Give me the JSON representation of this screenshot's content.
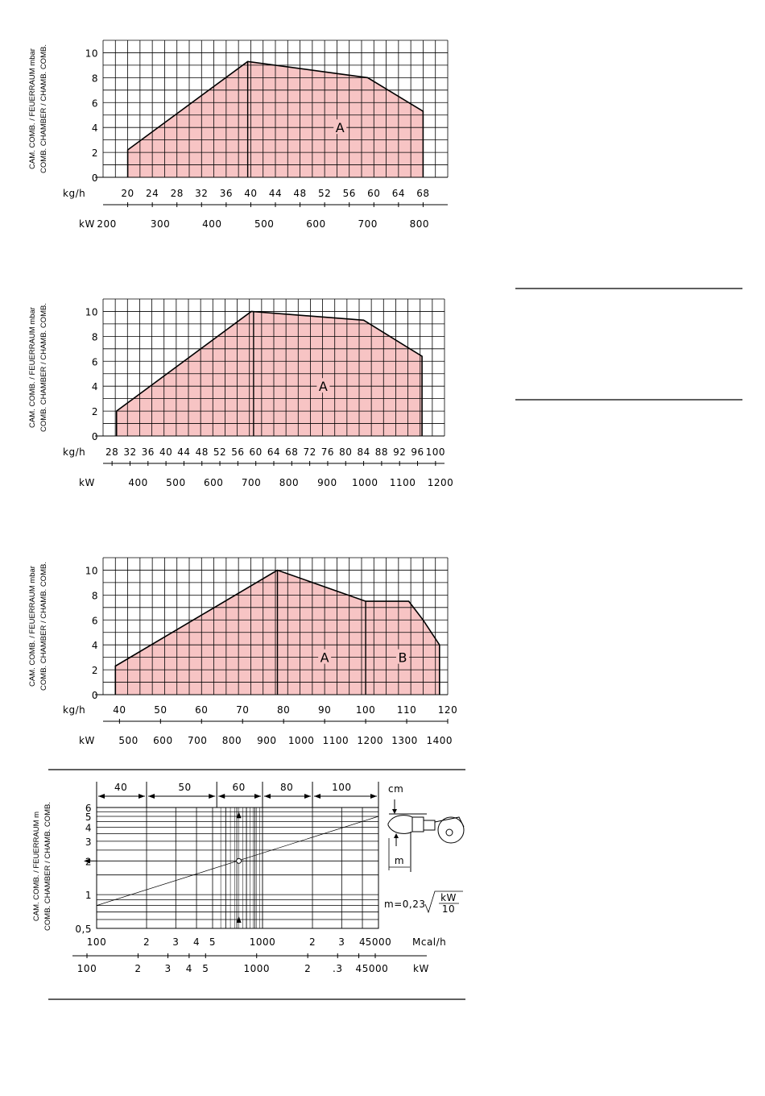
{
  "ylabel_lines": [
    "CAM. COMB. / FEUERRAUM mbar",
    "COMB. CHAMBER / CHAMB. COMB."
  ],
  "ylabel_lines_m": [
    "CAM. COMB. / FEUERRAUM m",
    "COMB. CHAMBER / CHAMB. COMB."
  ],
  "colors": {
    "fill": "#f7c4c4",
    "line": "#000000",
    "grid": "#000000"
  },
  "chart_data": [
    {
      "type": "area",
      "ylabel": "CAM. COMB. / FEUERRAUM mbar / COMB. CHAMBER / CHAMB. COMB.",
      "x_unit": "kg/h",
      "x2_unit": "kW",
      "xlim": [
        16,
        72
      ],
      "ylim": [
        0,
        11
      ],
      "grid": true,
      "x_ticks": [
        "20",
        "24",
        "28",
        "32",
        "36",
        "40",
        "44",
        "48",
        "52",
        "56",
        "60",
        "64",
        "68"
      ],
      "y_ticks": [
        "0",
        "2",
        "4",
        "6",
        "8",
        "10"
      ],
      "kw_ticks": [
        {
          "label": "200",
          "x": 16.6
        },
        {
          "label": "300",
          "x": 25.3
        },
        {
          "label": "400",
          "x": 33.7
        },
        {
          "label": "500",
          "x": 42.2
        },
        {
          "label": "600",
          "x": 50.6
        },
        {
          "label": "700",
          "x": 59.0
        },
        {
          "label": "800",
          "x": 67.4
        }
      ],
      "x": [
        20,
        20,
        39.5,
        59,
        68,
        68
      ],
      "y": [
        0,
        2.2,
        9.3,
        8.0,
        5.3,
        0
      ],
      "dividers": [
        39.5
      ],
      "regions": [
        {
          "label": "A",
          "x": 54.5,
          "y": 4
        }
      ]
    },
    {
      "type": "area",
      "ylabel": "CAM. COMB. / FEUERRAUM mbar / COMB. CHAMBER / CHAMB. COMB.",
      "x_unit": "kg/h",
      "x2_unit": "kW",
      "xlim": [
        26,
        102
      ],
      "ylim": [
        0,
        11
      ],
      "grid": true,
      "x_ticks": [
        "28",
        "32",
        "36",
        "40",
        "44",
        "48",
        "52",
        "56",
        "60",
        "64",
        "68",
        "72",
        "76",
        "80",
        "84",
        "88",
        "92",
        "96",
        "100"
      ],
      "y_ticks": [
        "0",
        "2",
        "4",
        "6",
        "8",
        "10"
      ],
      "kw_ticks": [
        {
          "label": "400",
          "x": 33.8
        },
        {
          "label": "500",
          "x": 42.2
        },
        {
          "label": "600",
          "x": 50.6
        },
        {
          "label": "700",
          "x": 59.0
        },
        {
          "label": "800",
          "x": 67.4
        },
        {
          "label": "900",
          "x": 75.9
        },
        {
          "label": "1000",
          "x": 84.3
        },
        {
          "label": "1100",
          "x": 92.7
        },
        {
          "label": "1200",
          "x": 101.1
        }
      ],
      "x": [
        29,
        29,
        59,
        84,
        97,
        97
      ],
      "y": [
        0,
        2.0,
        10.0,
        9.3,
        6.4,
        0
      ],
      "dividers": [
        59.5
      ],
      "regions": [
        {
          "label": "A",
          "x": 75,
          "y": 4
        }
      ]
    },
    {
      "type": "area",
      "ylabel": "CAM. COMB. / FEUERRAUM mbar / COMB. CHAMBER / CHAMB. COMB.",
      "x_unit": "kg/h",
      "x2_unit": "kW",
      "xlim": [
        36,
        120
      ],
      "ylim": [
        0,
        11
      ],
      "grid": true,
      "x_ticks": [
        "40",
        "50",
        "60",
        "70",
        "80",
        "90",
        "100",
        "110",
        "120"
      ],
      "y_ticks": [
        "0",
        "2",
        "4",
        "6",
        "8",
        "10"
      ],
      "kw_ticks": [
        {
          "label": "500",
          "x": 42.2
        },
        {
          "label": "600",
          "x": 50.6
        },
        {
          "label": "700",
          "x": 59.0
        },
        {
          "label": "800",
          "x": 67.4
        },
        {
          "label": "900",
          "x": 75.9
        },
        {
          "label": "1000",
          "x": 84.3
        },
        {
          "label": "1100",
          "x": 92.7
        },
        {
          "label": "1200",
          "x": 101.1
        },
        {
          "label": "1300",
          "x": 109.5
        },
        {
          "label": "1400",
          "x": 118.0
        }
      ],
      "x": [
        39,
        39,
        78.5,
        100,
        110.5,
        114,
        118,
        118
      ],
      "y": [
        0,
        2.3,
        10.0,
        7.5,
        7.5,
        6.0,
        4.0,
        0
      ],
      "dividers": [
        78.5,
        100
      ],
      "regions": [
        {
          "label": "A",
          "x": 90,
          "y": 3
        },
        {
          "label": "B",
          "x": 109,
          "y": 3
        }
      ]
    },
    {
      "type": "line",
      "ylabel": "CAM. COMB. / FEUERRAUM m / COMB. CHAMBER / CHAMB. COMB.",
      "x_scale": "log",
      "y_scale": "log",
      "xlim": [
        100,
        5000
      ],
      "ylim": [
        0.5,
        6
      ],
      "grid": true,
      "x_unit": "Mcal/h",
      "x2_unit": "kW",
      "x_ticks": [
        {
          "label": "100",
          "v": 100
        },
        {
          "label": "2",
          "v": 200
        },
        {
          "label": "3",
          "v": 300
        },
        {
          "label": "4",
          "v": 400
        },
        {
          "label": "5",
          "v": 500
        },
        {
          "label": "1000",
          "v": 1000
        },
        {
          "label": "2",
          "v": 2000
        },
        {
          "label": "3",
          "v": 3000
        },
        {
          "label": "4",
          "v": 4000
        },
        {
          "label": "5000",
          "v": 5000
        }
      ],
      "kw_ticks": [
        {
          "label": "100",
          "v": 86
        },
        {
          "label": "2",
          "v": 172
        },
        {
          "label": "3",
          "v": 258
        },
        {
          "label": "4",
          "v": 344
        },
        {
          "label": "5",
          "v": 430
        },
        {
          "label": "1000",
          "v": 860
        },
        {
          "label": "2",
          "v": 1720
        },
        {
          "label": ".3",
          "v": 2580
        },
        {
          "label": "4",
          "v": 3440
        },
        {
          "label": "5000",
          "v": 4300
        }
      ],
      "y_ticks": [
        {
          "label": "0,5",
          "v": 0.5
        },
        {
          "label": "1",
          "v": 1
        },
        {
          "label": "2",
          "v": 2
        },
        {
          "label": "3",
          "v": 3
        },
        {
          "label": "4",
          "v": 4
        },
        {
          "label": "5",
          "v": 5
        },
        {
          "label": "6",
          "v": 6
        }
      ],
      "cm_unit": "cm",
      "cm_labels": [
        {
          "label": "40",
          "v": 140
        },
        {
          "label": "50",
          "v": 340
        },
        {
          "label": "60",
          "v": 720
        },
        {
          "label": "80",
          "v": 1400
        },
        {
          "label": "100",
          "v": 3000
        }
      ],
      "cm_bounds": [
        100,
        200,
        530,
        1000,
        2000,
        5000
      ],
      "line_points": [
        {
          "x": 100,
          "y": 0.8
        },
        {
          "x": 5000,
          "y": 5.0
        }
      ],
      "example": {
        "x": 720,
        "y": 2
      },
      "formula": {
        "lhs": "m=0,23",
        "num": "kW",
        "den": "10"
      },
      "burner_label": "m"
    }
  ]
}
